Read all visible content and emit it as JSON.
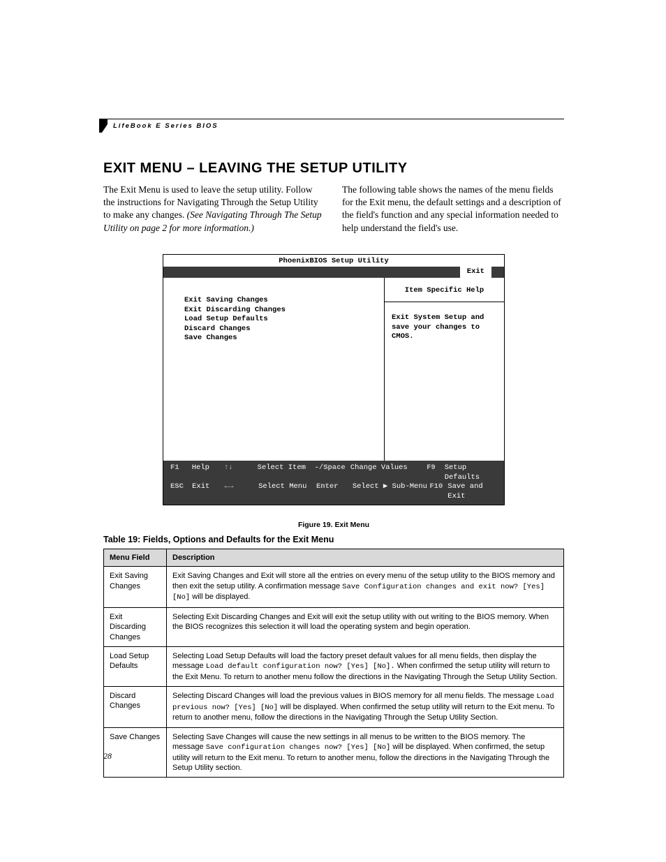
{
  "header": {
    "running_head": "LifeBook E Series BIOS"
  },
  "title": "EXIT MENU – LEAVING THE SETUP UTILITY",
  "intro": {
    "left_plain": "The Exit Menu is used to leave the setup utility. Follow the instructions for Navigating Through the Setup Utility to make any changes. ",
    "left_italic": "(See Navigating Through The Setup Utility on page 2 for more information.)",
    "right": "The following table shows the names of the menu fields for the Exit menu, the default settings and a description of the field's function and any special information needed to help understand the field's use."
  },
  "bios": {
    "title": "PhoenixBIOS Setup Utility",
    "active_tab": "Exit",
    "menu_items": [
      "Exit Saving Changes",
      "Exit Discarding Changes",
      "Load Setup Defaults",
      "Discard Changes",
      "Save Changes"
    ],
    "help_title": "Item Specific Help",
    "help_body": "Exit System Setup and save your changes to CMOS.",
    "footer": {
      "r1": {
        "k1": "F1",
        "l1": "Help",
        "k2": "↑↓",
        "l2": "Select Item",
        "k3": "-/Space",
        "l3": "Change Values",
        "k4": "F9",
        "l4": "Setup Defaults"
      },
      "r2": {
        "k1": "ESC",
        "l1": "Exit",
        "k2": "←→",
        "l2": "Select Menu",
        "k3": "Enter",
        "l3": "Select ▶ Sub-Menu",
        "k4": "F10",
        "l4": "Save and Exit"
      }
    }
  },
  "figure_caption": "Figure 19.  Exit Menu",
  "table_caption": "Table 19: Fields, Options and Defaults for the Exit Menu",
  "table": {
    "headers": [
      "Menu Field",
      "Description"
    ],
    "rows": [
      {
        "field": "Exit Saving Changes",
        "desc_pre": "Exit Saving Changes and Exit will store all the entries on every menu of the setup utility to the BIOS memory and then exit the setup utility. A confirmation message ",
        "desc_mono": "Save Configuration changes and exit now? [Yes] [No]",
        "desc_post": " will be displayed."
      },
      {
        "field": "Exit Discarding Changes",
        "desc_pre": "Selecting Exit Discarding Changes and Exit will exit the setup utility with out writing to the BIOS memory. When the BIOS recognizes this selection it will load the operating system and begin operation.",
        "desc_mono": "",
        "desc_post": ""
      },
      {
        "field": "Load Setup Defaults",
        "desc_pre": "Selecting Load Setup Defaults will load the factory preset default values for all menu fields, then display the message ",
        "desc_mono": "Load default configuration now? [Yes] [No].",
        "desc_post": " When confirmed the setup utility will return to the Exit Menu. To return to another menu follow the directions in the Navigating Through the Setup Utility Section."
      },
      {
        "field": "Discard Changes",
        "desc_pre": "Selecting Discard Changes will load the previous values in BIOS memory for all menu fields. The message ",
        "desc_mono": "Load previous now? [Yes] [No]",
        "desc_post": " will be displayed. When confirmed the setup utility will return to the Exit menu. To return to another menu, follow the directions in the Navigating Through the Setup Utility Section."
      },
      {
        "field": "Save Changes",
        "desc_pre": "Selecting Save Changes will cause the new settings in all menus to be written to the BIOS memory. The message ",
        "desc_mono": "Save configuration changes now? [Yes] [No]",
        "desc_post": " will be displayed. When confirmed, the setup utility will return to the Exit menu. To return to another menu, follow the directions in the Navigating Through the Setup Utility section."
      }
    ]
  },
  "page_number": "28",
  "colors": {
    "bios_bar": "#3a3a3a",
    "table_header_bg": "#d9d9d9"
  }
}
